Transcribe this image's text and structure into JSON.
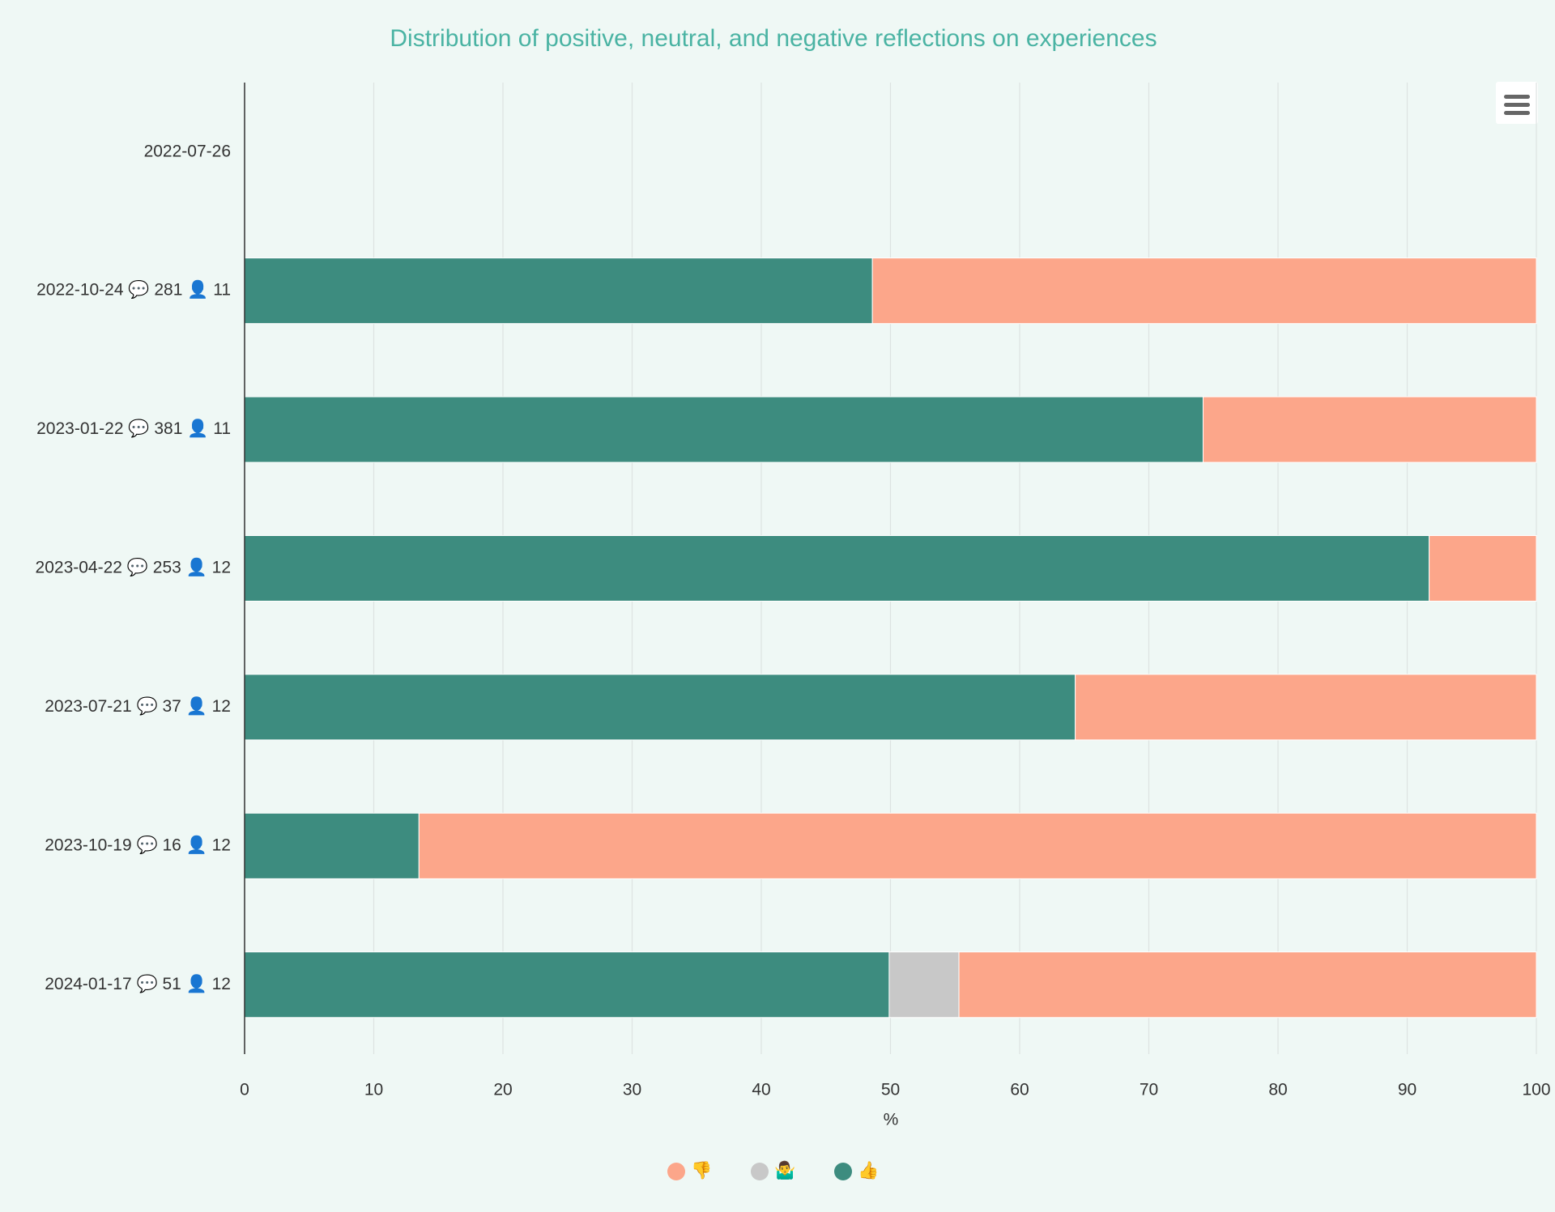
{
  "chart_data": {
    "type": "stacked-bar-horizontal",
    "title": "Distribution of positive, neutral, and negative reflections on experiences",
    "categories": [
      "2022-07-26",
      "2022-10-24 💬 281 👤 11",
      "2023-01-22 💬 381 👤 11",
      "2023-04-22 💬 253 👤 12",
      "2023-07-21 💬 37 👤 12",
      "2023-10-19 💬 16 👤 12",
      "2024-01-17 💬 51 👤 12"
    ],
    "series": [
      {
        "name": "👍",
        "color": "#3d8c7f",
        "values": [
          null,
          48.6,
          74.2,
          91.7,
          64.3,
          13.5,
          49.9
        ]
      },
      {
        "name": "🤷‍♂️",
        "color": "#c8c8c8",
        "values": [
          null,
          0,
          0,
          0,
          0,
          0,
          5.4
        ]
      },
      {
        "name": "👎",
        "color": "#fca68a",
        "values": [
          null,
          51.4,
          25.8,
          8.3,
          35.7,
          86.5,
          44.7
        ]
      }
    ],
    "xlim": [
      0,
      100
    ],
    "xticks": [
      0,
      10,
      20,
      30,
      40,
      50,
      60,
      70,
      80,
      90,
      100
    ],
    "value_axis_label": "%",
    "grid": true,
    "legend": "bottom",
    "legend_reversed": true
  }
}
